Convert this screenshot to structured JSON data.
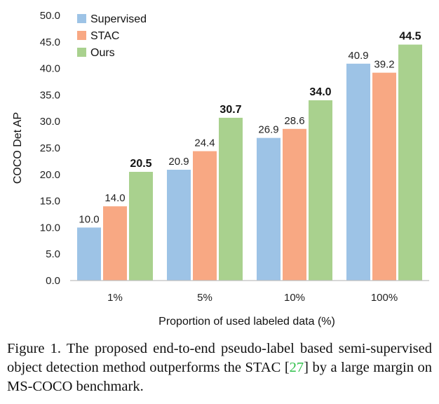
{
  "chart_data": {
    "type": "bar",
    "categories": [
      "1%",
      "5%",
      "10%",
      "100%"
    ],
    "series": [
      {
        "name": "Supervised",
        "values": [
          10.0,
          20.9,
          26.9,
          40.9
        ],
        "value_labels": [
          "10.0",
          "20.9",
          "26.9",
          "40.9"
        ],
        "color": "#9dc3e6"
      },
      {
        "name": "STAC",
        "values": [
          14.0,
          24.4,
          28.6,
          39.2
        ],
        "value_labels": [
          "14.0",
          "24.4",
          "28.6",
          "39.2"
        ],
        "color": "#f8a883"
      },
      {
        "name": "Ours",
        "values": [
          20.5,
          30.7,
          34.0,
          44.5
        ],
        "value_labels": [
          "20.5",
          "30.7",
          "34.0",
          "44.5"
        ],
        "color": "#a9d18e",
        "labels_bold": true
      }
    ],
    "xlabel": "Proportion of used labeled data (%)",
    "ylabel": "COCO Det AP",
    "ylim": [
      0,
      50
    ],
    "yticks": [
      0,
      5,
      10,
      15,
      20,
      25,
      30,
      35,
      40,
      45,
      50
    ],
    "ytick_labels": [
      "0.0",
      "5.0",
      "10.0",
      "15.0",
      "20.0",
      "25.0",
      "30.0",
      "35.0",
      "40.0",
      "45.0",
      "50.0"
    ],
    "grid": false,
    "legend_position": "top-left"
  },
  "caption": {
    "prefix": "Figure 1. The proposed end-to-end pseudo-label based semi-supervised object detection method outperforms the STAC [",
    "ref": "27",
    "suffix": "] by a large margin on MS-COCO benchmark."
  }
}
